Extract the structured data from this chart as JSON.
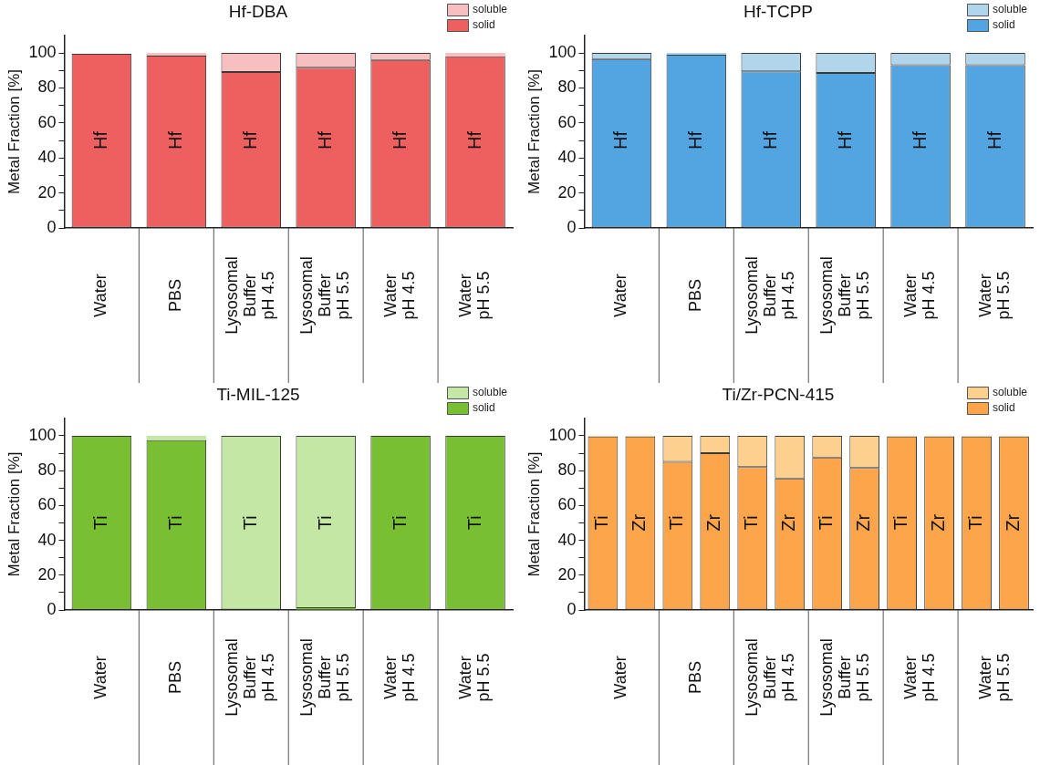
{
  "chart_data": [
    {
      "type": "bar",
      "title": "Hf-DBA",
      "ylabel": "Metal Fraction [%]",
      "categories": [
        "Hf",
        "Hf",
        "Hf",
        "Hf",
        "Hf",
        "Hf"
      ],
      "stacked": true,
      "legend": "top right",
      "ylim": [
        0,
        110
      ],
      "yticks": [
        0,
        {
          "value": 10,
          "label": null
        },
        20,
        {
          "value": 30,
          "label": null
        },
        40,
        {
          "value": 50,
          "label": null
        },
        60,
        {
          "value": 70,
          "label": null
        },
        80,
        {
          "value": 90,
          "label": null
        },
        100
      ],
      "series": [
        {
          "name": "solid",
          "color": "#ee5f5f",
          "values": [
            99.5,
            98.5,
            89,
            91.5,
            96,
            98
          ]
        },
        {
          "name": "soluble",
          "color": "#f7bfc0",
          "values": [
            null,
            1.5,
            11,
            8.5,
            4,
            2
          ]
        }
      ],
      "annotations": [
        "Water",
        "PBS",
        "Lysosomal\nBuffer\npH 4.5",
        "Lysosomal\nBuffer\npH 5.5",
        "Water\npH 4.5",
        "Water\npH 5.5"
      ]
    },
    {
      "type": "bar",
      "title": "Hf-TCPP",
      "ylabel": "Metal Fraction [%]",
      "categories": [
        "Hf",
        "Hf",
        "Hf",
        "Hf",
        "Hf",
        "Hf"
      ],
      "stacked": true,
      "legend": "top right",
      "ylim": [
        0,
        110
      ],
      "yticks": [
        0,
        {
          "value": 10,
          "label": null
        },
        20,
        {
          "value": 30,
          "label": null
        },
        40,
        {
          "value": 50,
          "label": null
        },
        60,
        {
          "value": 70,
          "label": null
        },
        80,
        {
          "value": 90,
          "label": null
        },
        100
      ],
      "series": [
        {
          "name": "solid",
          "color": "#52a5e0",
          "values": [
            96.5,
            99,
            89.5,
            88.5,
            93,
            93
          ]
        },
        {
          "name": "soluble",
          "color": "#b1d5ea",
          "values": [
            3.5,
            1,
            10.5,
            11.5,
            7,
            7
          ]
        }
      ],
      "annotations": [
        "Water",
        "PBS",
        "Lysosomal\nBuffer\npH 4.5",
        "Lysosomal\nBuffer\npH 5.5",
        "Water\npH 4.5",
        "Water\npH 5.5"
      ]
    },
    {
      "type": "bar",
      "title": "Ti-MIL-125",
      "ylabel": "Metal Fraction [%]",
      "categories": [
        "Ti",
        "Ti",
        "Ti",
        "Ti",
        "Ti",
        "Ti"
      ],
      "stacked": true,
      "legend": "top right",
      "ylim": [
        0,
        110
      ],
      "yticks": [
        0,
        {
          "value": 10,
          "label": null
        },
        20,
        {
          "value": 30,
          "label": null
        },
        40,
        {
          "value": 50,
          "label": null
        },
        60,
        {
          "value": 70,
          "label": null
        },
        80,
        {
          "value": 90,
          "label": null
        },
        100
      ],
      "series": [
        {
          "name": "solid",
          "color": "#78c032",
          "values": [
            100,
            97.5,
            0,
            1,
            100,
            100
          ]
        },
        {
          "name": "soluble",
          "color": "#c5e7a5",
          "values": [
            0,
            2.5,
            100,
            99,
            0,
            0
          ]
        }
      ],
      "annotations": [
        "Water",
        "PBS",
        "Lysosomal\nBuffer\npH 4.5",
        "Lysosomal\nBuffer\npH 5.5",
        "Water\npH 4.5",
        "Water\npH 5.5"
      ]
    },
    {
      "type": "bar",
      "title": "Ti/Zr-PCN-415",
      "ylabel": "Metal Fraction [%]",
      "categories": [
        "Ti",
        "Zr",
        "Ti",
        "Zr",
        "Ti",
        "Zr",
        "Ti",
        "Zr",
        "Ti",
        "Zr",
        "Ti",
        "Zr"
      ],
      "stacked": true,
      "legend": "top right",
      "ylim": [
        0,
        110
      ],
      "yticks": [
        0,
        {
          "value": 10,
          "label": null
        },
        20,
        {
          "value": 30,
          "label": null
        },
        40,
        {
          "value": 50,
          "label": null
        },
        60,
        {
          "value": 70,
          "label": null
        },
        80,
        {
          "value": 90,
          "label": null
        },
        100
      ],
      "series": [
        {
          "name": "solid",
          "color": "#fda54b",
          "values": [
            99.5,
            99.5,
            85,
            90,
            82,
            75.5,
            87.5,
            81.5,
            99.5,
            99.5,
            99.5,
            99.5
          ]
        },
        {
          "name": "soluble",
          "color": "#fdd08e",
          "values": [
            0.5,
            0.5,
            15,
            10,
            18,
            24.5,
            12.5,
            18.5,
            0.5,
            0.5,
            0.5,
            0.5
          ]
        }
      ],
      "annotations": [
        "Water",
        "PBS",
        "Lysosomal\nBuffer\npH 4.5",
        "Lysosomal\nBuffer\npH 5.5",
        "Water\npH 4.5",
        "Water\npH 5.5"
      ]
    }
  ]
}
